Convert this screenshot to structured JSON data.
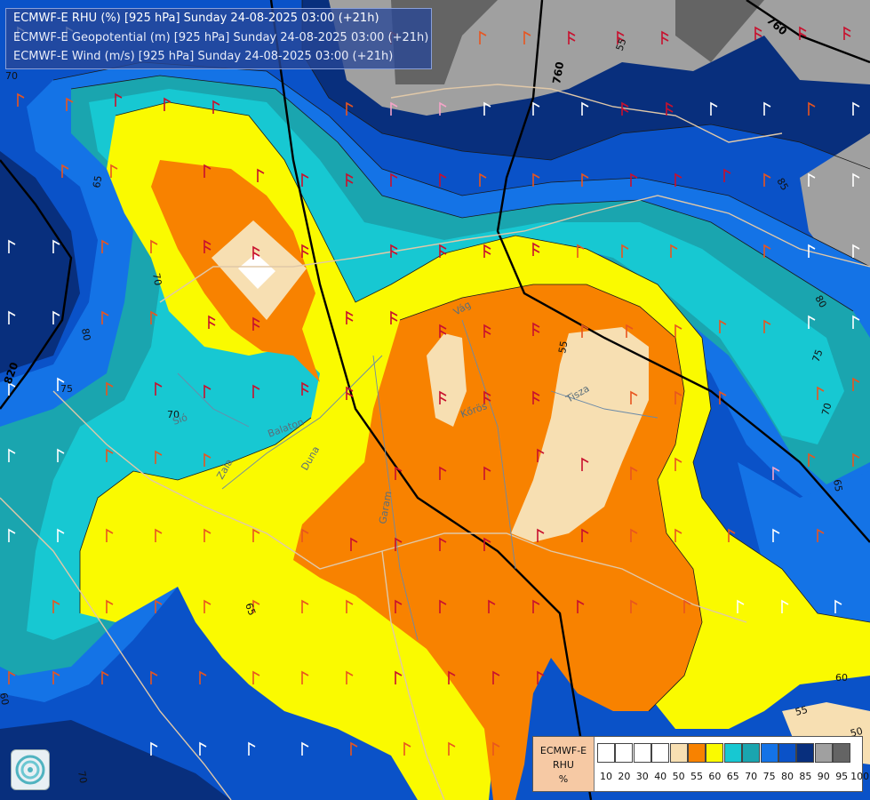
{
  "header": {
    "line1": "ECMWF-E RHU (%) [925 hPa] Sunday 24-08-2025 03:00 (+21h)",
    "line2": "ECMWF-E Geopotential (m) [925 hPa] Sunday 24-08-2025 03:00 (+21h)",
    "line3": "ECMWF-E Wind (m/s) [925 hPa] Sunday 24-08-2025 03:00 (+21h)"
  },
  "legend": {
    "model": "ECMWF-E",
    "variable": "RHU",
    "unit": "%",
    "ticks": [
      "10",
      "20",
      "30",
      "40",
      "50",
      "55",
      "60",
      "65",
      "70",
      "75",
      "80",
      "85",
      "90",
      "95",
      "100"
    ],
    "colors": [
      "#ffffff",
      "#ffffff",
      "#ffffff",
      "#ffffff",
      "#f7dfb2",
      "#f88200",
      "#fafa00",
      "#17c8d2",
      "#1aa5af",
      "#1473e6",
      "#0a52c8",
      "#082f7d",
      "#a0a0a0",
      "#646464"
    ]
  },
  "contour_labels": {
    "rhu": [
      "70",
      "65",
      "70",
      "80",
      "75",
      "70",
      "55",
      "55",
      "85",
      "80",
      "75",
      "70",
      "65",
      "60",
      "65",
      "60",
      "55",
      "50",
      "70"
    ],
    "geopotential": [
      "760",
      "760",
      "820"
    ],
    "rivers": [
      "Vág",
      "Tisza",
      "Zala",
      "Balaton",
      "Duna",
      "Sió",
      "Kőrös",
      "Garam"
    ]
  },
  "map_colors": {
    "rh_95": "#646464",
    "rh_90": "#a0a0a0",
    "rh_85": "#082f7d",
    "rh_80": "#0a52c8",
    "rh_75": "#1473e6",
    "rh_70": "#1aa5af",
    "rh_65": "#17c8d2",
    "rh_60": "#fafa00",
    "rh_55": "#f88200",
    "rh_50": "#f7dfb2",
    "border": "#e0c8a8",
    "river": "#6b8aa8"
  }
}
